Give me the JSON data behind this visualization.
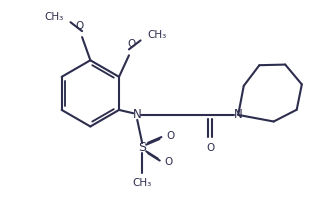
{
  "bg_color": "#ffffff",
  "line_color": "#2d2d4e",
  "lw": 1.5,
  "fs": 7.5,
  "xlim": [
    0,
    10
  ],
  "ylim": [
    0,
    6
  ]
}
